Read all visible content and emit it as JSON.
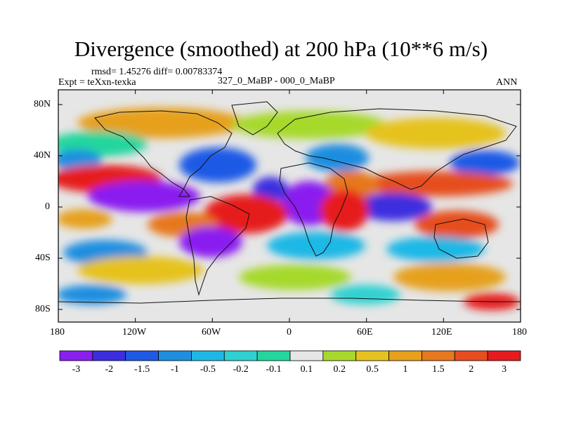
{
  "title": "Divergence (smoothed) at 200 hPa (10**6 m/s)",
  "subtitle_stats": "rmsd= 1.45276 diff= 0.00783374",
  "experiment": "Expt = teXxn-texka",
  "comparison": "327_0_MaBP - 000_0_MaBP",
  "season": "ANN",
  "lat_ticks": [
    "80N",
    "40N",
    "0",
    "40S",
    "80S"
  ],
  "lon_ticks": [
    "180",
    "120W",
    "60W",
    "0",
    "60E",
    "120E",
    "180"
  ],
  "colorbar": {
    "labels": [
      "-3",
      "-2",
      "-1.5",
      "-1",
      "-0.5",
      "-0.2",
      "-0.1",
      "0.1",
      "0.2",
      "0.5",
      "1",
      "1.5",
      "2",
      "3"
    ],
    "colors": [
      "#8a1ff0",
      "#3c2ee0",
      "#1f5ae6",
      "#1e8ee0",
      "#1fb8e6",
      "#2ed1d1",
      "#22d69e",
      "#e6e6e6",
      "#a6d92b",
      "#e6c21f",
      "#e6a01a",
      "#e6781e",
      "#e64d1f",
      "#e61a1f"
    ]
  }
}
